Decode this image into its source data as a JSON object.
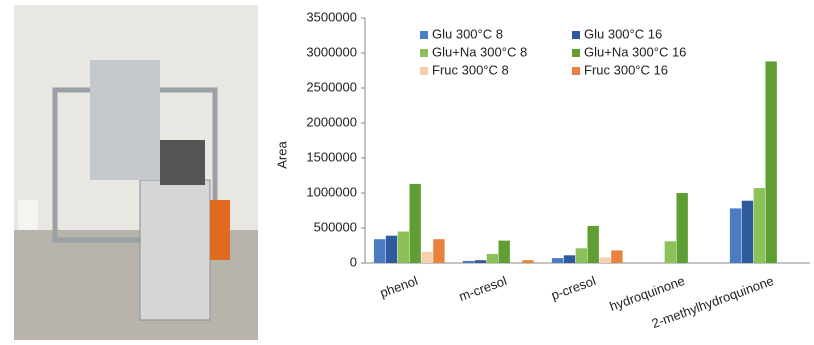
{
  "chart_data": {
    "type": "bar",
    "y_label": "Area",
    "categories": [
      "phenol",
      "m-cresol",
      "p-cresol",
      "hydroquinone",
      "2-methylhydroquinone"
    ],
    "series": [
      {
        "name": "Glu 300°C 8",
        "color": "#4a7cc4",
        "values": [
          340000,
          30000,
          70000,
          0,
          780000
        ]
      },
      {
        "name": "Glu 300°C 16",
        "color": "#2f5a9e",
        "values": [
          390000,
          40000,
          110000,
          0,
          890000
        ]
      },
      {
        "name": "Glu+Na 300°C 8",
        "color": "#8cc15a",
        "values": [
          450000,
          130000,
          210000,
          310000,
          1070000
        ]
      },
      {
        "name": "Glu+Na 300°C 16",
        "color": "#5e9e32",
        "values": [
          1130000,
          320000,
          530000,
          1000000,
          2880000
        ]
      },
      {
        "name": "Fruc 300°C 8",
        "color": "#f8cfae",
        "values": [
          160000,
          0,
          80000,
          0,
          0
        ]
      },
      {
        "name": "Fruc 300°C 16",
        "color": "#e8823e",
        "values": [
          340000,
          40000,
          180000,
          0,
          0
        ]
      }
    ],
    "ylim": [
      0,
      3500000
    ],
    "yticks": [
      0,
      500000,
      1000000,
      1500000,
      2000000,
      2500000,
      3000000,
      3500000
    ],
    "grid": false
  }
}
